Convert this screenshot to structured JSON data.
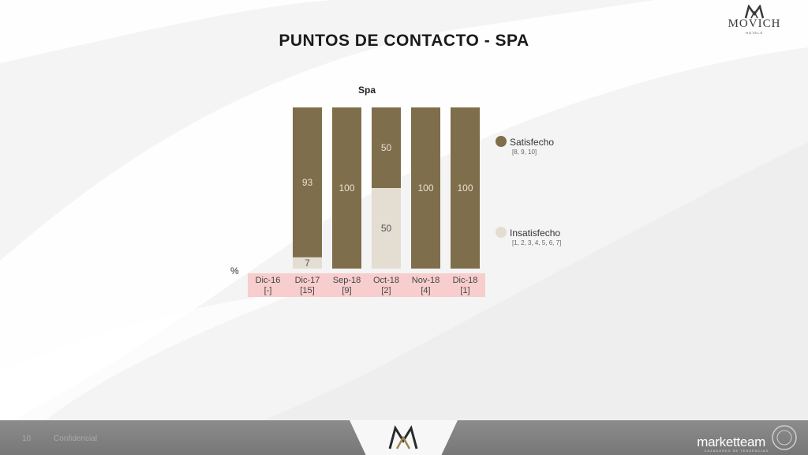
{
  "header": {
    "title": "PUNTOS DE CONTACTO - SPA",
    "logo_text": "MOVICH",
    "logo_sub": "HOTELS"
  },
  "colors": {
    "satisfied": "#7f6e4b",
    "unsatisfied": "#e3ddd2",
    "category_band": "#f8cdcd"
  },
  "chart_data": {
    "type": "bar",
    "stacked": true,
    "title": "Spa",
    "unit": "%",
    "categories": [
      "Dic-16",
      "Dic-17",
      "Sep-18",
      "Oct-18",
      "Nov-18",
      "Dic-18"
    ],
    "category_bases": [
      "[-]",
      "[15]",
      "[9]",
      "[2]",
      "[4]",
      "[1]"
    ],
    "series": [
      {
        "name": "Insatisfecho",
        "range": "[1, 2, 3, 4, 5, 6, 7]",
        "values": [
          null,
          7,
          0,
          50,
          0,
          0
        ]
      },
      {
        "name": "Satisfecho",
        "range": "[8, 9, 10]",
        "values": [
          null,
          93,
          100,
          50,
          100,
          100
        ]
      }
    ],
    "ylim": [
      0,
      100
    ],
    "grid": false,
    "legend_position": "right"
  },
  "footer": {
    "page_number": "10",
    "confidential": "Confidencial",
    "brand": "marketteam",
    "brand_sub": "CAZADORES DE TENDENCIAS"
  }
}
